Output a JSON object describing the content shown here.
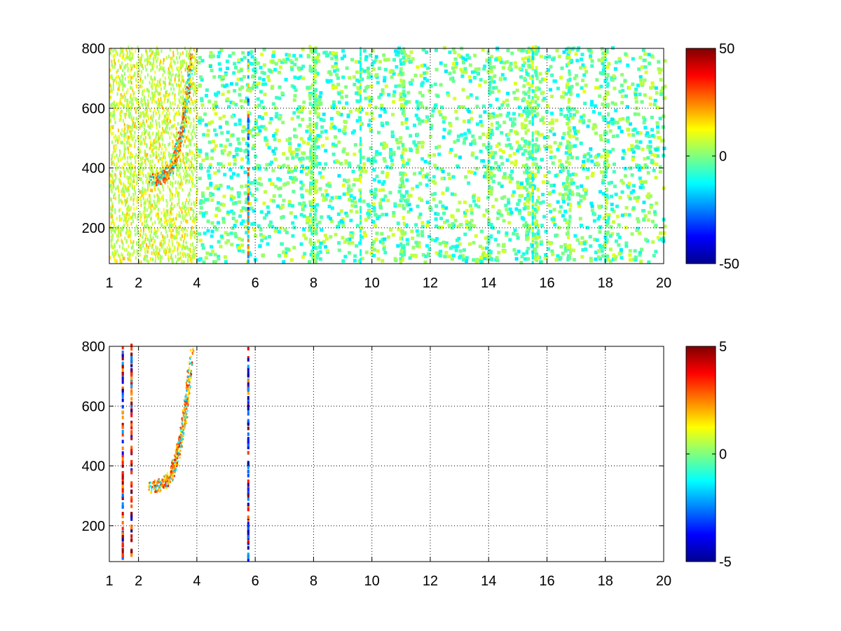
{
  "figure": {
    "colormap": "jet",
    "colormap_stops": [
      "#00008f",
      "#0000ff",
      "#00ffff",
      "#ffff00",
      "#ff0000",
      "#800000"
    ],
    "grid": true,
    "grid_style": "dotted"
  },
  "chart_data": [
    {
      "type": "heatmap",
      "title": "",
      "xlabel": "",
      "ylabel": "",
      "xlim": [
        1,
        20
      ],
      "ylim": [
        80,
        800
      ],
      "xticks": [
        "1",
        "2",
        "4",
        "6",
        "8",
        "10",
        "12",
        "14",
        "16",
        "18",
        "20"
      ],
      "xtick_values": [
        1,
        2,
        4,
        6,
        8,
        10,
        12,
        14,
        16,
        18,
        20
      ],
      "yticks": [
        "200",
        "400",
        "600",
        "800"
      ],
      "ytick_values": [
        200,
        400,
        600,
        800
      ],
      "colorbar": {
        "min": -50,
        "max": 50,
        "ticks": [
          "50",
          "0",
          "-50"
        ],
        "tick_values": [
          50,
          0,
          -50
        ]
      },
      "features": [
        {
          "kind": "noise-band",
          "x_range": [
            1.0,
            4.0
          ],
          "value_range": [
            5,
            20
          ],
          "density": 0.5
        },
        {
          "kind": "curve",
          "x_start": 2.3,
          "x_end": 3.8,
          "y_start": 360,
          "y_end": 780,
          "value": 30
        },
        {
          "kind": "column",
          "x": 5.75,
          "value": -25
        },
        {
          "kind": "column",
          "x": 9.6,
          "value": -10
        },
        {
          "kind": "column",
          "x": 15.5,
          "value": -12
        }
      ],
      "background_value_range": [
        -15,
        10
      ]
    },
    {
      "type": "heatmap",
      "title": "",
      "xlabel": "",
      "ylabel": "",
      "xlim": [
        1,
        20
      ],
      "ylim": [
        80,
        800
      ],
      "xticks": [
        "1",
        "2",
        "4",
        "6",
        "8",
        "10",
        "12",
        "14",
        "16",
        "18",
        "20"
      ],
      "xtick_values": [
        1,
        2,
        4,
        6,
        8,
        10,
        12,
        14,
        16,
        18,
        20
      ],
      "yticks": [
        "200",
        "400",
        "600",
        "800"
      ],
      "ytick_values": [
        200,
        400,
        600,
        800
      ],
      "colorbar": {
        "min": -5,
        "max": 5,
        "ticks": [
          "5",
          "0",
          "-5"
        ],
        "tick_values": [
          5,
          0,
          -5
        ]
      },
      "features": [
        {
          "kind": "curve",
          "x_start": 2.3,
          "x_end": 3.8,
          "y_start": 330,
          "y_end": 780,
          "value": 3
        },
        {
          "kind": "column",
          "x": 5.75,
          "value": -4
        },
        {
          "kind": "column",
          "x": 1.45,
          "value": 4
        },
        {
          "kind": "column",
          "x": 1.75,
          "value": 4
        }
      ]
    }
  ]
}
